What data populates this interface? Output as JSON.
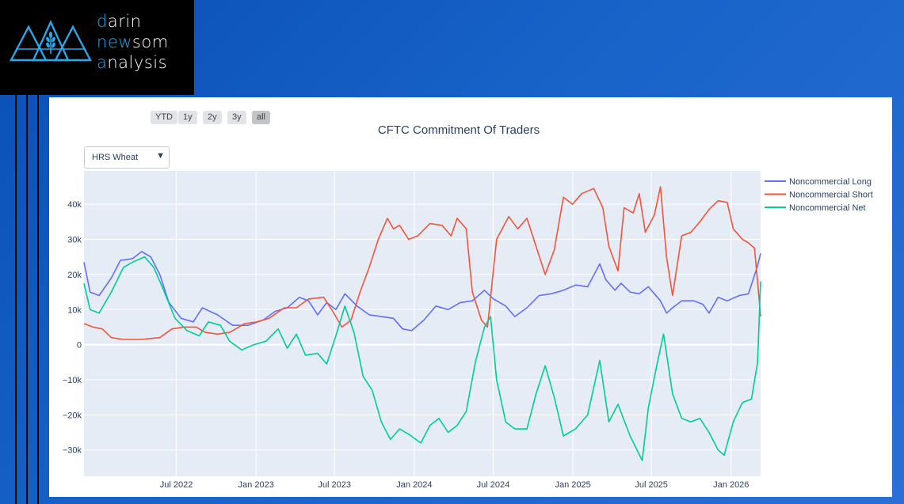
{
  "logo": {
    "lines": [
      {
        "first": "d",
        "rest": "arin"
      },
      {
        "first": "n",
        "mid": "ew",
        "rest": "som"
      },
      {
        "first": "a",
        "rest": "nalysis"
      }
    ],
    "accent_color": "#2ba6e8"
  },
  "range_selector": {
    "buttons": [
      "YTD",
      "1y",
      "2y",
      "3y",
      "all"
    ],
    "active": "all"
  },
  "dropdown": {
    "selected": "HRS Wheat"
  },
  "chart_data": {
    "type": "line",
    "title": "CFTC Commitment Of Traders",
    "x_range": [
      "2021-11-30",
      "2026-03-10"
    ],
    "ylim": [
      -37500,
      49500
    ],
    "y_ticks": [
      40000,
      30000,
      20000,
      10000,
      0,
      -10000,
      -20000,
      -30000
    ],
    "y_tick_labels": [
      "40k",
      "30k",
      "20k",
      "10k",
      "0",
      "−10k",
      "−20k",
      "−30k"
    ],
    "x_ticks": [
      "2022-07-01",
      "2023-01-01",
      "2023-07-01",
      "2024-01-01",
      "2024-07-01",
      "2025-01-01",
      "2025-07-01",
      "2026-01-01"
    ],
    "x_tick_labels": [
      "Jul 2022",
      "Jan 2023",
      "Jul 2023",
      "Jan 2024",
      "Jul 2024",
      "Jan 2025",
      "Jul 2025",
      "Jan 2026"
    ],
    "grid": true,
    "legend_position": "right",
    "background": "#e5ecf6",
    "series": [
      {
        "name": "Noncommercial Long",
        "color": "#636efa",
        "points": [
          [
            "2021-11-30",
            23500
          ],
          [
            "2021-12-14",
            15000
          ],
          [
            "2022-01-04",
            14000
          ],
          [
            "2022-02-01",
            19000
          ],
          [
            "2022-02-22",
            24000
          ],
          [
            "2022-03-22",
            24500
          ],
          [
            "2022-04-12",
            26500
          ],
          [
            "2022-05-03",
            25000
          ],
          [
            "2022-05-24",
            20000
          ],
          [
            "2022-06-14",
            12000
          ],
          [
            "2022-07-12",
            7500
          ],
          [
            "2022-08-09",
            6500
          ],
          [
            "2022-08-30",
            10500
          ],
          [
            "2022-10-04",
            8500
          ],
          [
            "2022-11-08",
            5500
          ],
          [
            "2022-12-13",
            5500
          ],
          [
            "2023-01-17",
            7000
          ],
          [
            "2023-02-14",
            9500
          ],
          [
            "2023-03-14",
            10500
          ],
          [
            "2023-04-11",
            13500
          ],
          [
            "2023-05-02",
            12500
          ],
          [
            "2023-05-23",
            8500
          ],
          [
            "2023-06-13",
            12000
          ],
          [
            "2023-07-04",
            10000
          ],
          [
            "2023-07-25",
            14500
          ],
          [
            "2023-08-22",
            11000
          ],
          [
            "2023-09-19",
            8500
          ],
          [
            "2023-10-17",
            8000
          ],
          [
            "2023-11-14",
            7500
          ],
          [
            "2023-12-05",
            4500
          ],
          [
            "2023-12-26",
            4000
          ],
          [
            "2024-01-23",
            7000
          ],
          [
            "2024-02-20",
            11000
          ],
          [
            "2024-03-19",
            10000
          ],
          [
            "2024-04-16",
            12000
          ],
          [
            "2024-05-14",
            12500
          ],
          [
            "2024-06-11",
            15500
          ],
          [
            "2024-07-02",
            13000
          ],
          [
            "2024-07-30",
            11000
          ],
          [
            "2024-08-20",
            8000
          ],
          [
            "2024-09-17",
            10500
          ],
          [
            "2024-10-15",
            14000
          ],
          [
            "2024-11-12",
            14500
          ],
          [
            "2024-12-10",
            15500
          ],
          [
            "2025-01-07",
            17000
          ],
          [
            "2025-02-04",
            16500
          ],
          [
            "2025-03-04",
            23000
          ],
          [
            "2025-03-18",
            18500
          ],
          [
            "2025-04-08",
            15500
          ],
          [
            "2025-04-22",
            17500
          ],
          [
            "2025-05-13",
            15000
          ],
          [
            "2025-06-03",
            14500
          ],
          [
            "2025-06-24",
            16500
          ],
          [
            "2025-07-08",
            14500
          ],
          [
            "2025-07-22",
            12500
          ],
          [
            "2025-08-05",
            9000
          ],
          [
            "2025-08-19",
            10500
          ],
          [
            "2025-09-09",
            12500
          ],
          [
            "2025-10-07",
            12500
          ],
          [
            "2025-10-28",
            11500
          ],
          [
            "2025-11-11",
            9000
          ],
          [
            "2025-12-02",
            13500
          ],
          [
            "2025-12-23",
            12500
          ],
          [
            "2026-01-20",
            14000
          ],
          [
            "2026-02-10",
            14500
          ],
          [
            "2026-03-03",
            22500
          ],
          [
            "2026-03-10",
            26000
          ]
        ]
      },
      {
        "name": "Noncommercial Short",
        "color": "#ef553b",
        "points": [
          [
            "2021-11-30",
            6000
          ],
          [
            "2021-12-21",
            5000
          ],
          [
            "2022-01-11",
            4500
          ],
          [
            "2022-02-01",
            2000
          ],
          [
            "2022-03-01",
            1500
          ],
          [
            "2022-04-12",
            1500
          ],
          [
            "2022-05-24",
            2000
          ],
          [
            "2022-06-21",
            4500
          ],
          [
            "2022-07-19",
            5000
          ],
          [
            "2022-08-16",
            5000
          ],
          [
            "2022-09-06",
            3500
          ],
          [
            "2022-10-04",
            3000
          ],
          [
            "2022-11-01",
            3500
          ],
          [
            "2022-12-06",
            6000
          ],
          [
            "2023-01-03",
            6500
          ],
          [
            "2023-01-31",
            7500
          ],
          [
            "2023-03-07",
            10500
          ],
          [
            "2023-04-04",
            10500
          ],
          [
            "2023-05-02",
            13000
          ],
          [
            "2023-06-06",
            13500
          ],
          [
            "2023-06-27",
            9500
          ],
          [
            "2023-07-18",
            5000
          ],
          [
            "2023-08-08",
            7000
          ],
          [
            "2023-08-29",
            15000
          ],
          [
            "2023-09-19",
            22000
          ],
          [
            "2023-10-10",
            30000
          ],
          [
            "2023-10-31",
            36000
          ],
          [
            "2023-11-14",
            33000
          ],
          [
            "2023-11-28",
            34000
          ],
          [
            "2023-12-19",
            30000
          ],
          [
            "2024-01-09",
            31000
          ],
          [
            "2024-02-06",
            34500
          ],
          [
            "2024-03-05",
            34000
          ],
          [
            "2024-03-26",
            31000
          ],
          [
            "2024-04-09",
            36000
          ],
          [
            "2024-04-30",
            33000
          ],
          [
            "2024-05-14",
            15000
          ],
          [
            "2024-06-04",
            7000
          ],
          [
            "2024-06-18",
            5000
          ],
          [
            "2024-07-09",
            30000
          ],
          [
            "2024-08-06",
            36500
          ],
          [
            "2024-08-27",
            33000
          ],
          [
            "2024-09-17",
            36000
          ],
          [
            "2024-10-08",
            28000
          ],
          [
            "2024-10-29",
            20000
          ],
          [
            "2024-11-19",
            27000
          ],
          [
            "2024-12-10",
            42000
          ],
          [
            "2024-12-31",
            40000
          ],
          [
            "2025-01-21",
            43000
          ],
          [
            "2025-02-18",
            44500
          ],
          [
            "2025-03-11",
            39000
          ],
          [
            "2025-03-25",
            28000
          ],
          [
            "2025-04-15",
            21000
          ],
          [
            "2025-04-29",
            39000
          ],
          [
            "2025-05-20",
            37500
          ],
          [
            "2025-06-03",
            43000
          ],
          [
            "2025-06-17",
            32000
          ],
          [
            "2025-07-08",
            37000
          ],
          [
            "2025-07-22",
            45000
          ],
          [
            "2025-08-05",
            25000
          ],
          [
            "2025-08-19",
            14000
          ],
          [
            "2025-09-09",
            31000
          ],
          [
            "2025-09-30",
            32000
          ],
          [
            "2025-10-21",
            35000
          ],
          [
            "2025-11-11",
            38500
          ],
          [
            "2025-12-02",
            41000
          ],
          [
            "2025-12-23",
            40500
          ],
          [
            "2026-01-06",
            33000
          ],
          [
            "2026-01-27",
            30000
          ],
          [
            "2026-02-10",
            29000
          ],
          [
            "2026-02-24",
            27500
          ],
          [
            "2026-03-03",
            18000
          ],
          [
            "2026-03-10",
            8000
          ]
        ]
      },
      {
        "name": "Noncommercial Net",
        "color": "#00cc96",
        "points": [
          [
            "2021-11-30",
            17500
          ],
          [
            "2021-12-14",
            10000
          ],
          [
            "2022-01-04",
            9000
          ],
          [
            "2022-02-01",
            15000
          ],
          [
            "2022-03-01",
            22000
          ],
          [
            "2022-03-22",
            23500
          ],
          [
            "2022-04-19",
            25000
          ],
          [
            "2022-05-10",
            22000
          ],
          [
            "2022-05-31",
            16000
          ],
          [
            "2022-06-28",
            7500
          ],
          [
            "2022-07-26",
            4000
          ],
          [
            "2022-08-23",
            2500
          ],
          [
            "2022-09-13",
            6500
          ],
          [
            "2022-10-11",
            5500
          ],
          [
            "2022-11-01",
            1000
          ],
          [
            "2022-11-29",
            -1500
          ],
          [
            "2022-12-27",
            0
          ],
          [
            "2023-01-24",
            1000
          ],
          [
            "2023-02-21",
            4500
          ],
          [
            "2023-03-14",
            -1000
          ],
          [
            "2023-04-04",
            3000
          ],
          [
            "2023-04-25",
            -3000
          ],
          [
            "2023-05-23",
            -2500
          ],
          [
            "2023-06-13",
            -5500
          ],
          [
            "2023-07-04",
            2500
          ],
          [
            "2023-07-25",
            11000
          ],
          [
            "2023-08-15",
            3500
          ],
          [
            "2023-09-05",
            -9000
          ],
          [
            "2023-09-26",
            -13000
          ],
          [
            "2023-10-17",
            -22000
          ],
          [
            "2023-11-07",
            -27000
          ],
          [
            "2023-11-28",
            -24000
          ],
          [
            "2023-12-19",
            -25500
          ],
          [
            "2024-01-16",
            -28000
          ],
          [
            "2024-02-06",
            -23000
          ],
          [
            "2024-02-27",
            -21000
          ],
          [
            "2024-03-19",
            -25000
          ],
          [
            "2024-04-09",
            -23000
          ],
          [
            "2024-04-30",
            -19000
          ],
          [
            "2024-05-21",
            -5000
          ],
          [
            "2024-06-11",
            5000
          ],
          [
            "2024-06-25",
            8000
          ],
          [
            "2024-07-09",
            -10000
          ],
          [
            "2024-07-30",
            -22000
          ],
          [
            "2024-08-20",
            -24000
          ],
          [
            "2024-09-17",
            -24000
          ],
          [
            "2024-10-08",
            -14000
          ],
          [
            "2024-10-29",
            -6000
          ],
          [
            "2024-11-19",
            -15000
          ],
          [
            "2024-12-10",
            -26000
          ],
          [
            "2025-01-07",
            -24000
          ],
          [
            "2025-02-04",
            -20000
          ],
          [
            "2025-03-04",
            -4500
          ],
          [
            "2025-03-25",
            -22000
          ],
          [
            "2025-04-15",
            -17000
          ],
          [
            "2025-05-13",
            -26000
          ],
          [
            "2025-06-10",
            -33000
          ],
          [
            "2025-06-24",
            -18000
          ],
          [
            "2025-07-15",
            -5000
          ],
          [
            "2025-07-29",
            3000
          ],
          [
            "2025-08-19",
            -14000
          ],
          [
            "2025-09-09",
            -21000
          ],
          [
            "2025-09-30",
            -22000
          ],
          [
            "2025-10-21",
            -21000
          ],
          [
            "2025-11-11",
            -25000
          ],
          [
            "2025-12-02",
            -30000
          ],
          [
            "2025-12-16",
            -31500
          ],
          [
            "2026-01-06",
            -22000
          ],
          [
            "2026-01-27",
            -16500
          ],
          [
            "2026-02-17",
            -15500
          ],
          [
            "2026-03-03",
            -5000
          ],
          [
            "2026-03-10",
            18000
          ]
        ]
      }
    ]
  }
}
